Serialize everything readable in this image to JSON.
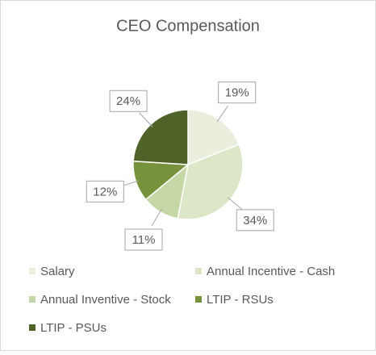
{
  "chart_data": {
    "type": "pie",
    "title": "CEO Compensation",
    "categories": [
      "Salary",
      "Annual Incentive - Cash",
      "Annual Inventive - Stock",
      "LTIP - RSUs",
      "LTIP - PSUs"
    ],
    "values": [
      19,
      34,
      11,
      12,
      24
    ],
    "value_labels": [
      "19%",
      "34%",
      "11%",
      "12%",
      "24%"
    ],
    "colors": [
      "#e9efdc",
      "#dce7c8",
      "#c4d7a4",
      "#76933c",
      "#4f6228"
    ],
    "legend": "bottom"
  }
}
